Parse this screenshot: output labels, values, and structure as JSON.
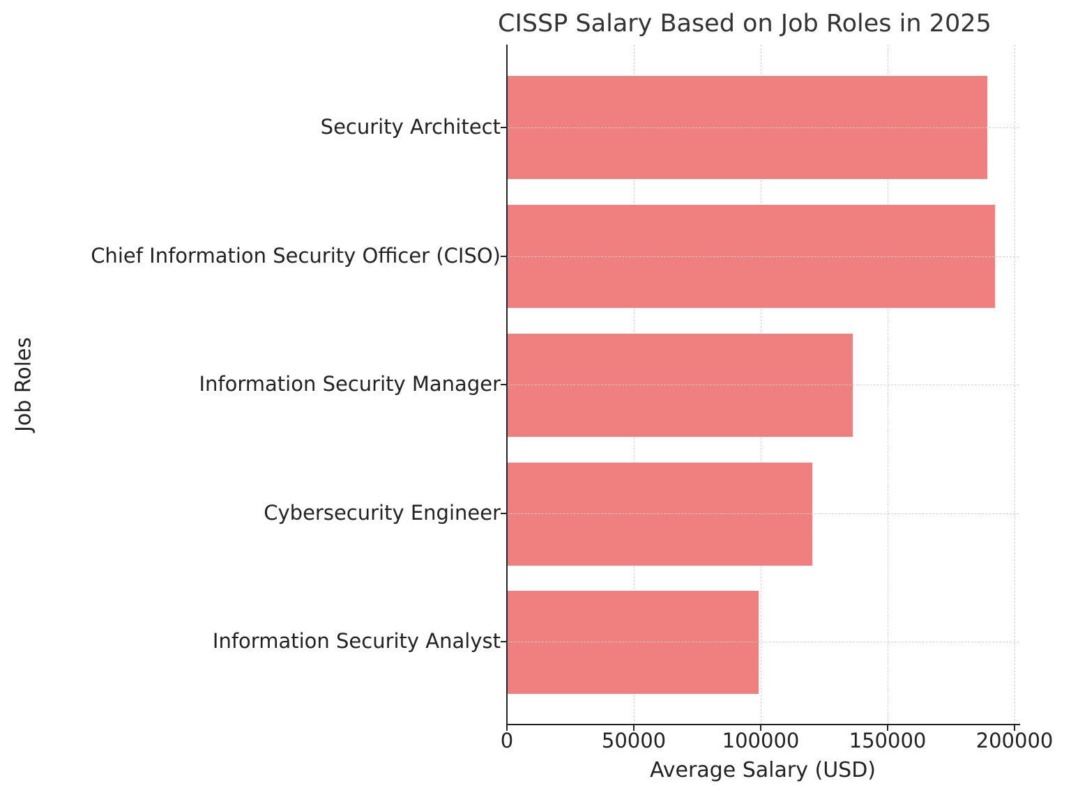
{
  "chart_data": {
    "type": "bar",
    "orientation": "horizontal",
    "title": "CISSP Salary Based on Job Roles in 2025",
    "xlabel": "Average Salary (USD)",
    "ylabel": "Job Roles",
    "categories": [
      "Security Architect",
      "Chief Information Security Officer (CISO)",
      "Information Security Manager",
      "Cybersecurity Engineer",
      "Information Security Analyst"
    ],
    "values": [
      189000,
      192000,
      136000,
      120000,
      99000
    ],
    "xlim": [
      0,
      200000
    ],
    "xticks": [
      "0",
      "50000",
      "100000",
      "150000",
      "200000"
    ],
    "grid": true,
    "bar_color": "#f08080",
    "legend": null
  }
}
